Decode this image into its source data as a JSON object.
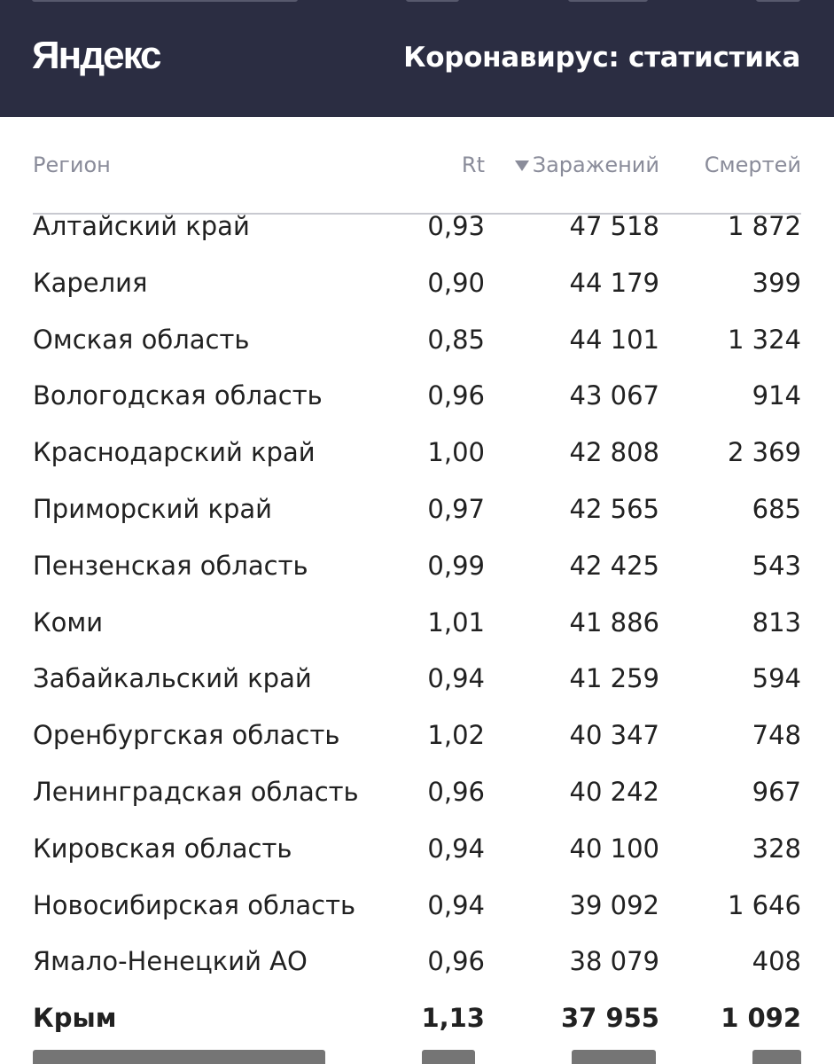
{
  "header": {
    "logo": "Яндекс",
    "title": "Коронавирус: статистика"
  },
  "table": {
    "columns": {
      "region": "Регион",
      "rt": "Rt",
      "infections": "Заражений",
      "deaths": "Смертей"
    },
    "sorted_by": "infections",
    "rows": [
      {
        "region": "Алтайский край",
        "rt": "0,93",
        "infections": "47 518",
        "deaths": "1 872"
      },
      {
        "region": "Карелия",
        "rt": "0,90",
        "infections": "44 179",
        "deaths": "399"
      },
      {
        "region": "Омская область",
        "rt": "0,85",
        "infections": "44 101",
        "deaths": "1 324"
      },
      {
        "region": "Вологодская область",
        "rt": "0,96",
        "infections": "43 067",
        "deaths": "914"
      },
      {
        "region": "Краснодарский край",
        "rt": "1,00",
        "infections": "42 808",
        "deaths": "2 369"
      },
      {
        "region": "Приморский край",
        "rt": "0,97",
        "infections": "42 565",
        "deaths": "685"
      },
      {
        "region": "Пензенская область",
        "rt": "0,99",
        "infections": "42 425",
        "deaths": "543"
      },
      {
        "region": "Коми",
        "rt": "1,01",
        "infections": "41 886",
        "deaths": "813"
      },
      {
        "region": "Забайкальский край",
        "rt": "0,94",
        "infections": "41 259",
        "deaths": "594"
      },
      {
        "region": "Оренбургская область",
        "rt": "1,02",
        "infections": "40 347",
        "deaths": "748"
      },
      {
        "region": "Ленинградская область",
        "rt": "0,96",
        "infections": "40 242",
        "deaths": "967"
      },
      {
        "region": "Кировская область",
        "rt": "0,94",
        "infections": "40 100",
        "deaths": "328"
      },
      {
        "region": "Новосибирская область",
        "rt": "0,94",
        "infections": "39 092",
        "deaths": "1 646"
      },
      {
        "region": "Ямало-Ненецкий АО",
        "rt": "0,96",
        "infections": "38 079",
        "deaths": "408"
      },
      {
        "region": "Крым",
        "rt": "1,13",
        "infections": "37 955",
        "deaths": "1 092",
        "highlighted": true
      }
    ]
  },
  "colors": {
    "header_bg": "#2b2d42",
    "header_text": "#ffffff",
    "column_header_text": "#8a8c9a",
    "body_text": "#212121"
  }
}
